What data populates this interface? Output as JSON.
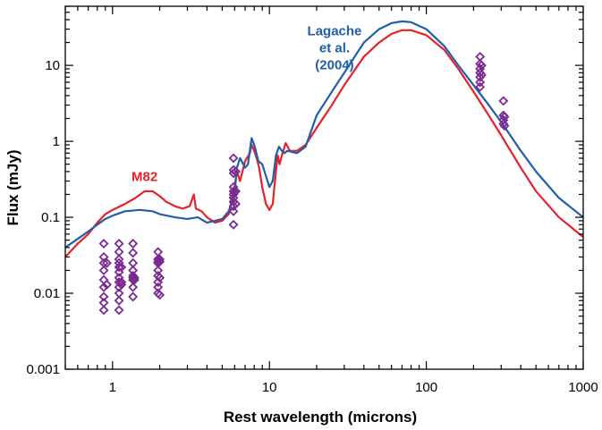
{
  "chart_data": {
    "type": "line",
    "xlabel": "Rest wavelength (microns)",
    "ylabel": "Flux (mJy)",
    "xscale": "log",
    "yscale": "log",
    "xlim": [
      0.5,
      1000
    ],
    "ylim": [
      0.001,
      60
    ],
    "x_ticks": [
      {
        "value": 1,
        "label": "1"
      },
      {
        "value": 10,
        "label": "10"
      },
      {
        "value": 100,
        "label": "100"
      },
      {
        "value": 1000,
        "label": "1000"
      }
    ],
    "y_ticks": [
      {
        "value": 0.001,
        "label": "0.001"
      },
      {
        "value": 0.01,
        "label": "0.01"
      },
      {
        "value": 0.1,
        "label": "0.1"
      },
      {
        "value": 1,
        "label": "1"
      },
      {
        "value": 10,
        "label": "10"
      }
    ],
    "grid": false,
    "legend": "none",
    "annotations": [
      {
        "lines": [
          "M82"
        ],
        "color": "#e8202a",
        "x": 1.6,
        "y": 0.3
      },
      {
        "lines": [
          "Lagache",
          "et al.",
          "(2004)"
        ],
        "color": "#1f5fa8",
        "x": 26,
        "y": 25
      }
    ],
    "series": [
      {
        "color": "#e8202a",
        "style": "line",
        "points": [
          [
            0.5,
            0.03
          ],
          [
            0.6,
            0.045
          ],
          [
            0.7,
            0.06
          ],
          [
            0.8,
            0.085
          ],
          [
            0.9,
            0.11
          ],
          [
            1.0,
            0.125
          ],
          [
            1.2,
            0.15
          ],
          [
            1.4,
            0.18
          ],
          [
            1.6,
            0.22
          ],
          [
            1.8,
            0.22
          ],
          [
            2.0,
            0.19
          ],
          [
            2.2,
            0.16
          ],
          [
            2.5,
            0.14
          ],
          [
            2.8,
            0.13
          ],
          [
            3.1,
            0.14
          ],
          [
            3.3,
            0.2
          ],
          [
            3.4,
            0.13
          ],
          [
            3.7,
            0.12
          ],
          [
            4.0,
            0.1
          ],
          [
            4.5,
            0.085
          ],
          [
            5.0,
            0.09
          ],
          [
            5.5,
            0.11
          ],
          [
            5.8,
            0.18
          ],
          [
            6.0,
            0.25
          ],
          [
            6.2,
            0.4
          ],
          [
            6.5,
            0.3
          ],
          [
            7.0,
            0.55
          ],
          [
            7.5,
            0.7
          ],
          [
            7.7,
            0.9
          ],
          [
            8.0,
            0.75
          ],
          [
            8.3,
            0.6
          ],
          [
            8.6,
            0.45
          ],
          [
            9.0,
            0.25
          ],
          [
            9.5,
            0.15
          ],
          [
            10.0,
            0.125
          ],
          [
            10.5,
            0.15
          ],
          [
            11.0,
            0.4
          ],
          [
            11.3,
            0.65
          ],
          [
            11.6,
            0.5
          ],
          [
            12.0,
            0.65
          ],
          [
            12.7,
            0.95
          ],
          [
            13.5,
            0.75
          ],
          [
            15,
            0.75
          ],
          [
            17,
            0.9
          ],
          [
            20,
            1.5
          ],
          [
            25,
            3
          ],
          [
            30,
            5.5
          ],
          [
            40,
            13
          ],
          [
            50,
            20
          ],
          [
            60,
            26
          ],
          [
            70,
            29
          ],
          [
            80,
            29
          ],
          [
            100,
            25
          ],
          [
            130,
            16
          ],
          [
            160,
            9
          ],
          [
            200,
            4.5
          ],
          [
            250,
            2.2
          ],
          [
            300,
            1.2
          ],
          [
            400,
            0.45
          ],
          [
            500,
            0.22
          ],
          [
            700,
            0.1
          ],
          [
            1000,
            0.055
          ]
        ]
      },
      {
        "color": "#1f5fa8",
        "style": "line",
        "points": [
          [
            0.5,
            0.04
          ],
          [
            0.6,
            0.052
          ],
          [
            0.7,
            0.065
          ],
          [
            0.8,
            0.08
          ],
          [
            0.9,
            0.095
          ],
          [
            1.0,
            0.105
          ],
          [
            1.2,
            0.12
          ],
          [
            1.5,
            0.125
          ],
          [
            1.8,
            0.12
          ],
          [
            2.0,
            0.11
          ],
          [
            2.5,
            0.1
          ],
          [
            3.0,
            0.095
          ],
          [
            3.5,
            0.1
          ],
          [
            4.0,
            0.085
          ],
          [
            4.5,
            0.09
          ],
          [
            5.0,
            0.095
          ],
          [
            5.5,
            0.12
          ],
          [
            6.0,
            0.2
          ],
          [
            6.2,
            0.45
          ],
          [
            6.5,
            0.6
          ],
          [
            7.0,
            0.45
          ],
          [
            7.3,
            0.5
          ],
          [
            7.7,
            1.1
          ],
          [
            8.0,
            0.9
          ],
          [
            8.5,
            0.55
          ],
          [
            9.0,
            0.5
          ],
          [
            9.5,
            0.35
          ],
          [
            10.0,
            0.25
          ],
          [
            10.5,
            0.3
          ],
          [
            11.0,
            0.65
          ],
          [
            11.5,
            0.85
          ],
          [
            12.0,
            0.75
          ],
          [
            12.5,
            0.7
          ],
          [
            13,
            0.75
          ],
          [
            15,
            0.7
          ],
          [
            17,
            0.85
          ],
          [
            20,
            2.2
          ],
          [
            25,
            4.5
          ],
          [
            30,
            8
          ],
          [
            40,
            20
          ],
          [
            50,
            30
          ],
          [
            60,
            36
          ],
          [
            70,
            38
          ],
          [
            80,
            37
          ],
          [
            100,
            30
          ],
          [
            130,
            18
          ],
          [
            160,
            10
          ],
          [
            200,
            5.5
          ],
          [
            250,
            3
          ],
          [
            300,
            1.8
          ],
          [
            400,
            0.75
          ],
          [
            500,
            0.4
          ],
          [
            700,
            0.18
          ],
          [
            1000,
            0.1
          ]
        ]
      },
      {
        "color": "#7b2a92",
        "style": "markers",
        "marker": "diamond-open",
        "points": [
          [
            0.88,
            0.045
          ],
          [
            0.88,
            0.03
          ],
          [
            0.88,
            0.025
          ],
          [
            0.88,
            0.02
          ],
          [
            0.88,
            0.015
          ],
          [
            0.88,
            0.012
          ],
          [
            0.88,
            0.009
          ],
          [
            0.88,
            0.0075
          ],
          [
            0.88,
            0.006
          ],
          [
            0.92,
            0.025
          ],
          [
            0.92,
            0.013
          ],
          [
            1.1,
            0.045
          ],
          [
            1.1,
            0.035
          ],
          [
            1.1,
            0.028
          ],
          [
            1.1,
            0.025
          ],
          [
            1.1,
            0.022
          ],
          [
            1.1,
            0.019
          ],
          [
            1.1,
            0.016
          ],
          [
            1.1,
            0.014
          ],
          [
            1.1,
            0.012
          ],
          [
            1.1,
            0.01
          ],
          [
            1.1,
            0.008
          ],
          [
            1.1,
            0.006
          ],
          [
            1.14,
            0.022
          ],
          [
            1.14,
            0.014
          ],
          [
            1.14,
            0.013
          ],
          [
            1.35,
            0.045
          ],
          [
            1.35,
            0.034
          ],
          [
            1.35,
            0.025
          ],
          [
            1.35,
            0.02
          ],
          [
            1.35,
            0.017
          ],
          [
            1.35,
            0.016
          ],
          [
            1.35,
            0.015
          ],
          [
            1.35,
            0.012
          ],
          [
            1.35,
            0.009
          ],
          [
            1.38,
            0.016
          ],
          [
            1.38,
            0.015
          ],
          [
            1.95,
            0.035
          ],
          [
            1.95,
            0.028
          ],
          [
            1.95,
            0.026
          ],
          [
            1.95,
            0.025
          ],
          [
            1.95,
            0.02
          ],
          [
            1.95,
            0.017
          ],
          [
            1.95,
            0.014
          ],
          [
            1.95,
            0.012
          ],
          [
            1.95,
            0.01
          ],
          [
            2.0,
            0.028
          ],
          [
            2.0,
            0.026
          ],
          [
            2.0,
            0.016
          ],
          [
            2.0,
            0.0095
          ],
          [
            5.9,
            0.6
          ],
          [
            5.9,
            0.42
          ],
          [
            5.9,
            0.38
          ],
          [
            5.9,
            0.25
          ],
          [
            5.9,
            0.22
          ],
          [
            5.9,
            0.2
          ],
          [
            5.9,
            0.18
          ],
          [
            5.9,
            0.16
          ],
          [
            5.9,
            0.14
          ],
          [
            5.9,
            0.12
          ],
          [
            5.9,
            0.08
          ],
          [
            6.1,
            0.4
          ],
          [
            6.1,
            0.22
          ],
          [
            6.1,
            0.15
          ],
          [
            220,
            13
          ],
          [
            220,
            10.5
          ],
          [
            220,
            9
          ],
          [
            220,
            8
          ],
          [
            220,
            7
          ],
          [
            220,
            6
          ],
          [
            220,
            5.2
          ],
          [
            225,
            10
          ],
          [
            225,
            7.5
          ],
          [
            310,
            3.4
          ],
          [
            310,
            2.2
          ],
          [
            310,
            1.9
          ],
          [
            310,
            1.7
          ],
          [
            315,
            2.1
          ],
          [
            315,
            1.6
          ]
        ]
      }
    ]
  }
}
